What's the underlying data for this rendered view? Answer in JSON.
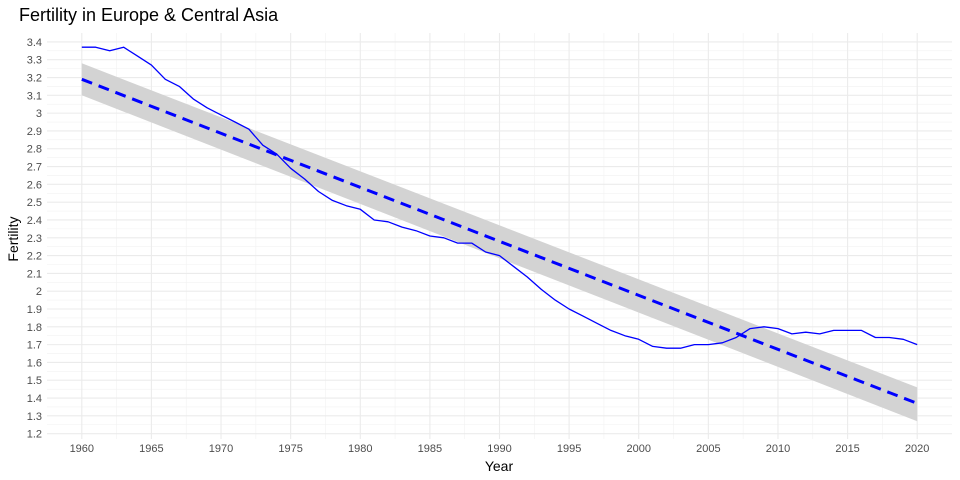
{
  "chart_data": {
    "type": "line",
    "title": "Fertility in Europe & Central Asia",
    "xlabel": "Year",
    "ylabel": "Fertility",
    "xlim": [
      1957.5,
      2022.5
    ],
    "ylim": [
      1.17,
      3.45
    ],
    "x_ticks": [
      1960,
      1965,
      1970,
      1975,
      1980,
      1985,
      1990,
      1995,
      2000,
      2005,
      2010,
      2015,
      2020
    ],
    "x_tick_labels": [
      "1960",
      "1965",
      "1970",
      "1975",
      "1980",
      "1985",
      "1990",
      "1995",
      "2000",
      "2005",
      "2010",
      "2015",
      "2020"
    ],
    "y_ticks": [
      1.2,
      1.3,
      1.4,
      1.5,
      1.6,
      1.7,
      1.8,
      1.9,
      2.0,
      2.1,
      2.2,
      2.3,
      2.4,
      2.5,
      2.6,
      2.7,
      2.8,
      2.9,
      3.0,
      3.1,
      3.2,
      3.3,
      3.4
    ],
    "y_tick_labels": [
      "1.2",
      "1.3",
      "1.4",
      "1.5",
      "1.6",
      "1.7",
      "1.8",
      "1.9",
      "2",
      "2.1",
      "2.2",
      "2.3",
      "2.4",
      "2.5",
      "2.6",
      "2.7",
      "2.8",
      "2.9",
      "3",
      "3.1",
      "3.2",
      "3.3",
      "3.4"
    ],
    "grid": true,
    "series": [
      {
        "kind": "line",
        "color": "#0000ff",
        "x": [
          1960,
          1961,
          1962,
          1963,
          1964,
          1965,
          1966,
          1967,
          1968,
          1969,
          1970,
          1971,
          1972,
          1973,
          1974,
          1975,
          1976,
          1977,
          1978,
          1979,
          1980,
          1981,
          1982,
          1983,
          1984,
          1985,
          1986,
          1987,
          1988,
          1989,
          1990,
          1991,
          1992,
          1993,
          1994,
          1995,
          1996,
          1997,
          1998,
          1999,
          2000,
          2001,
          2002,
          2003,
          2004,
          2005,
          2006,
          2007,
          2008,
          2009,
          2010,
          2011,
          2012,
          2013,
          2014,
          2015,
          2016,
          2017,
          2018,
          2019,
          2020
        ],
        "values": [
          3.37,
          3.37,
          3.35,
          3.37,
          3.32,
          3.27,
          3.19,
          3.15,
          3.08,
          3.03,
          2.99,
          2.95,
          2.91,
          2.82,
          2.77,
          2.69,
          2.63,
          2.56,
          2.51,
          2.48,
          2.46,
          2.4,
          2.39,
          2.36,
          2.34,
          2.31,
          2.3,
          2.27,
          2.27,
          2.22,
          2.2,
          2.14,
          2.08,
          2.01,
          1.95,
          1.9,
          1.86,
          1.82,
          1.78,
          1.75,
          1.73,
          1.69,
          1.68,
          1.68,
          1.7,
          1.7,
          1.71,
          1.74,
          1.79,
          1.8,
          1.79,
          1.76,
          1.77,
          1.76,
          1.78,
          1.78,
          1.78,
          1.74,
          1.74,
          1.73,
          1.7
        ]
      },
      {
        "kind": "trend",
        "color": "#0000ff",
        "dashed": true,
        "band_color": "#d3d3d3",
        "x": [
          1960,
          2020
        ],
        "values": [
          3.19,
          1.37
        ],
        "band_lower": [
          3.1,
          1.27
        ],
        "band_upper": [
          3.28,
          1.46
        ]
      }
    ]
  }
}
